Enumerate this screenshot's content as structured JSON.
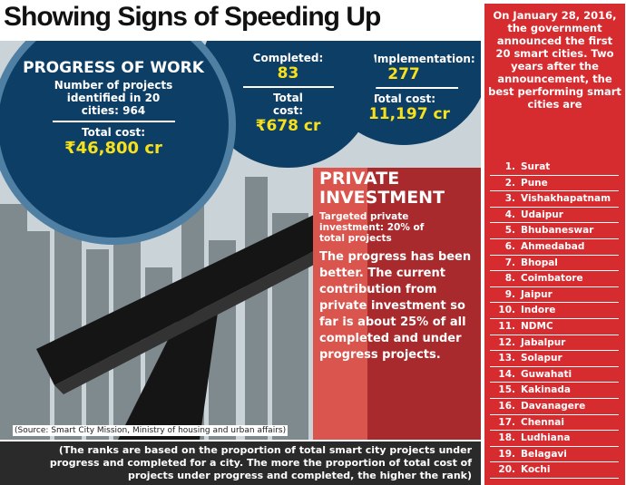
{
  "title": "Showing Signs of Speeding Up",
  "progress": {
    "heading": "PROGRESS OF WORK",
    "projects_text": "Number of projects identified in 20 cities: 964",
    "cost_label": "Total cost:",
    "cost_value": "₹46,800 cr"
  },
  "completed": {
    "label": "Completed:",
    "value": "83",
    "cost_label": "Total cost:",
    "cost_value": "₹678 cr"
  },
  "under_implementation": {
    "label": "Under Implementation:",
    "value": "277",
    "cost_label": "Total cost:",
    "cost_value": "₹11,197 cr"
  },
  "private": {
    "heading": "PRIVATE INVESTMENT",
    "target": "Targeted private investment: 20% of total projects",
    "body": "The progress has been better. The current contribution from private investment so far is about 25% of all completed and under progress projects."
  },
  "source": "(Source: Smart City Mission, Ministry of housing and urban affairs)",
  "footnote": "(The ranks are based on the proportion of total smart city projects under progress and completed for a city. The more the proportion of total cost of projects under progress and completed, the higher the rank)",
  "sidebar": {
    "intro": "On January 28, 2016, the government announced the first 20 smart cities. Two years after the announcement, the best performing smart cities are",
    "cities": [
      {
        "rank": "1.",
        "name": "Surat"
      },
      {
        "rank": "2.",
        "name": "Pune"
      },
      {
        "rank": "3.",
        "name": "Vishakhapatnam"
      },
      {
        "rank": "4.",
        "name": "Udaipur"
      },
      {
        "rank": "5.",
        "name": "Bhubaneswar"
      },
      {
        "rank": "6.",
        "name": "Ahmedabad"
      },
      {
        "rank": "7.",
        "name": "Bhopal"
      },
      {
        "rank": "8.",
        "name": "Coimbatore"
      },
      {
        "rank": "9.",
        "name": "Jaipur"
      },
      {
        "rank": "10.",
        "name": "Indore"
      },
      {
        "rank": "11.",
        "name": "NDMC"
      },
      {
        "rank": "12.",
        "name": "Jabalpur"
      },
      {
        "rank": "13.",
        "name": "Solapur"
      },
      {
        "rank": "14.",
        "name": "Guwahati"
      },
      {
        "rank": "15.",
        "name": "Kakinada"
      },
      {
        "rank": "16.",
        "name": "Davanagere"
      },
      {
        "rank": "17.",
        "name": "Chennai"
      },
      {
        "rank": "18.",
        "name": "Ludhiana"
      },
      {
        "rank": "19.",
        "name": "Belagavi"
      },
      {
        "rank": "20.",
        "name": "Kochi"
      }
    ]
  },
  "colors": {
    "navy": "#0d3e66",
    "red": "#d62b2f",
    "yellow": "#f7e11c"
  }
}
